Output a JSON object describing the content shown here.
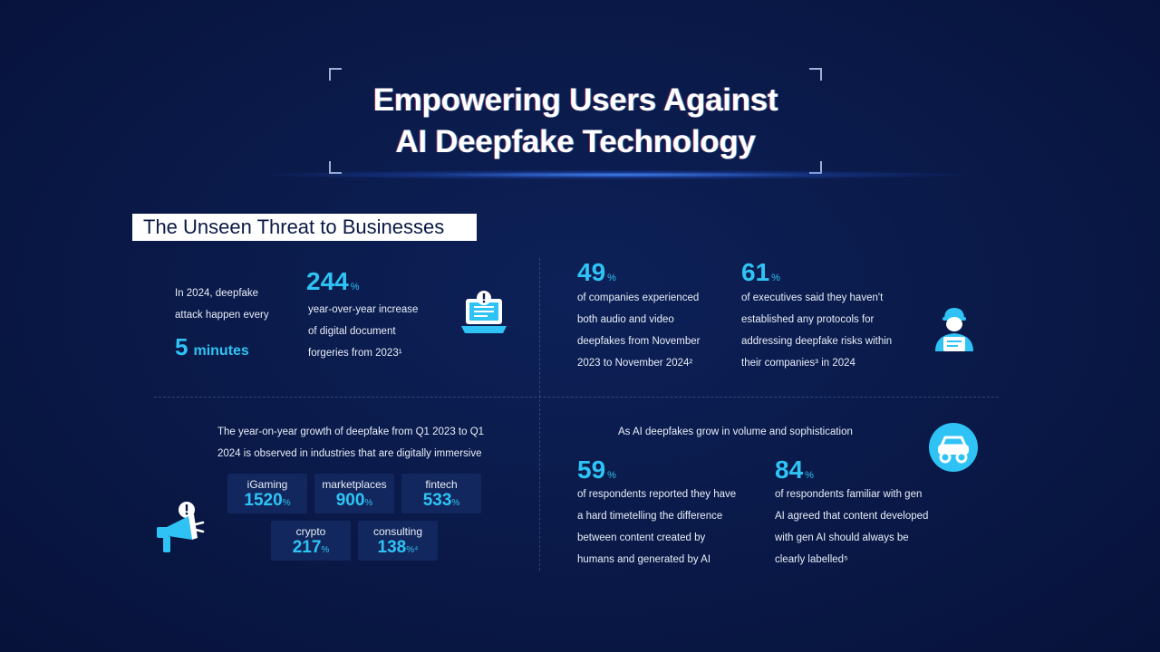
{
  "header": {
    "title_line1": "Empowering Users Against",
    "title_line2": "AI Deepfake Technology"
  },
  "section": {
    "label": "The Unseen Threat to Businesses"
  },
  "stat_minutes": {
    "text_line1": "In 2024, deepfake",
    "text_line2": "attack happen every",
    "number": "5",
    "unit": "minutes"
  },
  "stat_244": {
    "value": "244",
    "unit": "%",
    "line1": "year-over-year increase",
    "line2": "of digital document",
    "line3": "forgeries from 2023¹"
  },
  "stat_49": {
    "value": "49",
    "unit": "%",
    "line1": "of companies experienced",
    "line2": "both audio and video",
    "line3": "deepfakes from November",
    "line4": "2023 to November 2024²"
  },
  "stat_61": {
    "value": "61",
    "unit": "%",
    "line1": "of executives said they haven't",
    "line2": "established any protocols for",
    "line3": "addressing deepfake risks within",
    "line4": "their companies³ in 2024"
  },
  "industries": {
    "intro_line1": "The year-on-year growth of deepfake from Q1 2023 to Q1",
    "intro_line2": "2024 is observed in industries that are digitally immersive",
    "items": [
      {
        "label": "iGaming",
        "value": "1520",
        "unit": "%"
      },
      {
        "label": "marketplaces",
        "value": "900",
        "unit": "%"
      },
      {
        "label": "fintech",
        "value": "533",
        "unit": "%"
      },
      {
        "label": "crypto",
        "value": "217",
        "unit": "%"
      },
      {
        "label": "consulting",
        "value": "138",
        "unit": "%⁴"
      }
    ]
  },
  "growth": {
    "heading": "As AI deepfakes grow in volume and sophistication"
  },
  "stat_59": {
    "value": "59",
    "unit": "%",
    "line1": "of respondents reported they have",
    "line2": "a hard timetelling the difference",
    "line3": "between content created by",
    "line4": "humans and generated by AI"
  },
  "stat_84": {
    "value": "84",
    "unit": "%",
    "line1": "of respondents familiar with gen",
    "line2": "AI agreed that content developed",
    "line3": "with gen AI should always be",
    "line4": "clearly labelled⁵"
  },
  "icons": [
    "laptop-alert-icon",
    "person-laptop-icon",
    "megaphone-alert-icon",
    "car-icon"
  ],
  "colors": {
    "background": "#0a1a4a",
    "accent": "#2fc3f5",
    "chip": "#12275d",
    "text": "#ffffff"
  }
}
